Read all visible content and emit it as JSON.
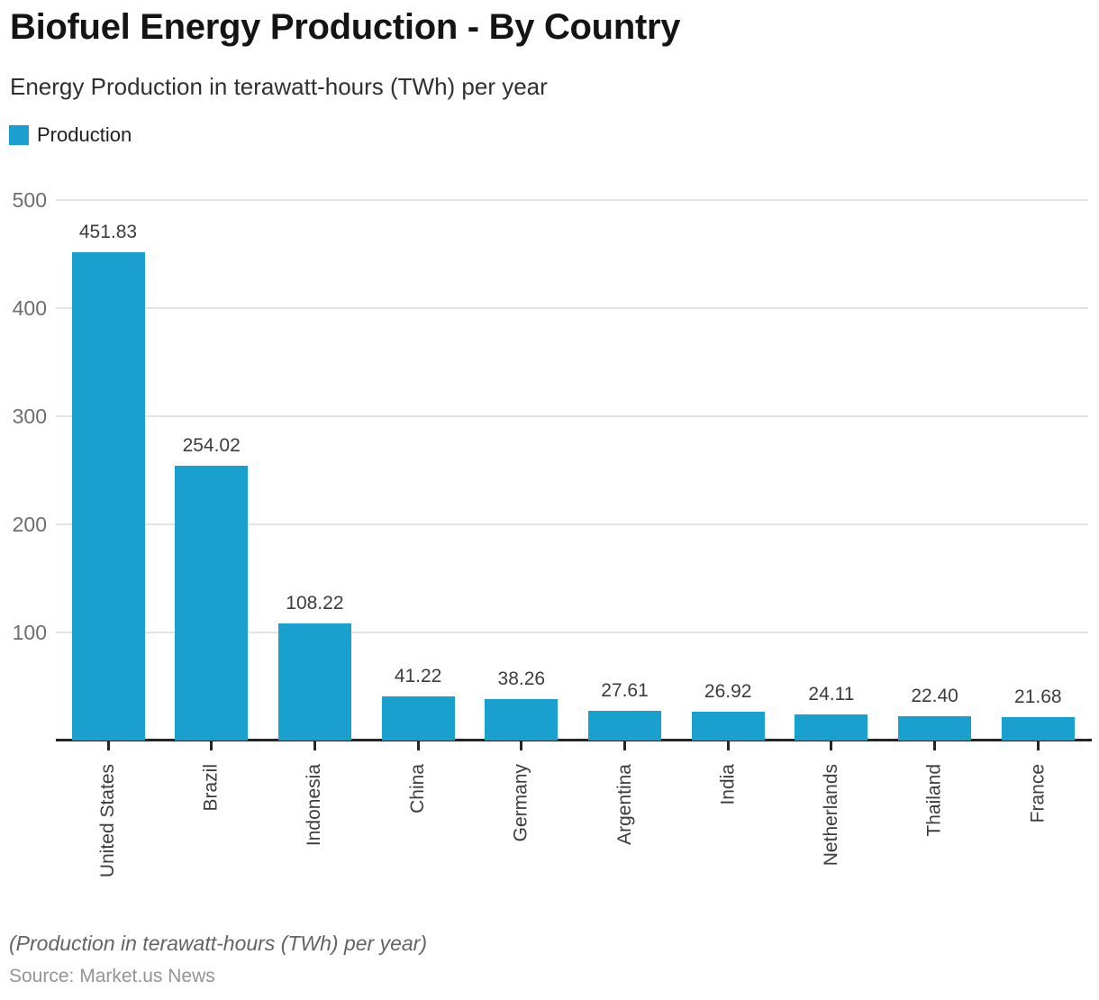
{
  "header": {
    "title": "Biofuel Energy Production - By Country",
    "subtitle": "Energy Production in terawatt-hours (TWh) per year"
  },
  "legend": {
    "label": "Production",
    "swatch_color": "#1AA0CF"
  },
  "chart_data": {
    "type": "bar",
    "title": "Biofuel Energy Production - By Country",
    "subtitle": "Energy Production in terawatt-hours (TWh) per year",
    "series_name": "Production",
    "categories": [
      "United States",
      "Brazil",
      "Indonesia",
      "China",
      "Germany",
      "Argentina",
      "India",
      "Netherlands",
      "Thailand",
      "France"
    ],
    "values": [
      451.83,
      254.02,
      108.22,
      41.22,
      38.26,
      27.61,
      26.92,
      24.11,
      22.4,
      21.68
    ],
    "value_labels": [
      "451.83",
      "254.02",
      "108.22",
      "41.22",
      "38.26",
      "27.61",
      "26.92",
      "24.11",
      "22.40",
      "21.68"
    ],
    "xlabel": "",
    "ylabel": "",
    "ylim": [
      0,
      500
    ],
    "yticks": [
      100,
      200,
      300,
      400,
      500
    ],
    "grid": true,
    "legend_position": "top-left",
    "bar_color": "#1AA0CF",
    "units": "TWh"
  },
  "footer": {
    "note": "(Production in terawatt-hours (TWh) per year)",
    "source": "Source: Market.us News"
  }
}
